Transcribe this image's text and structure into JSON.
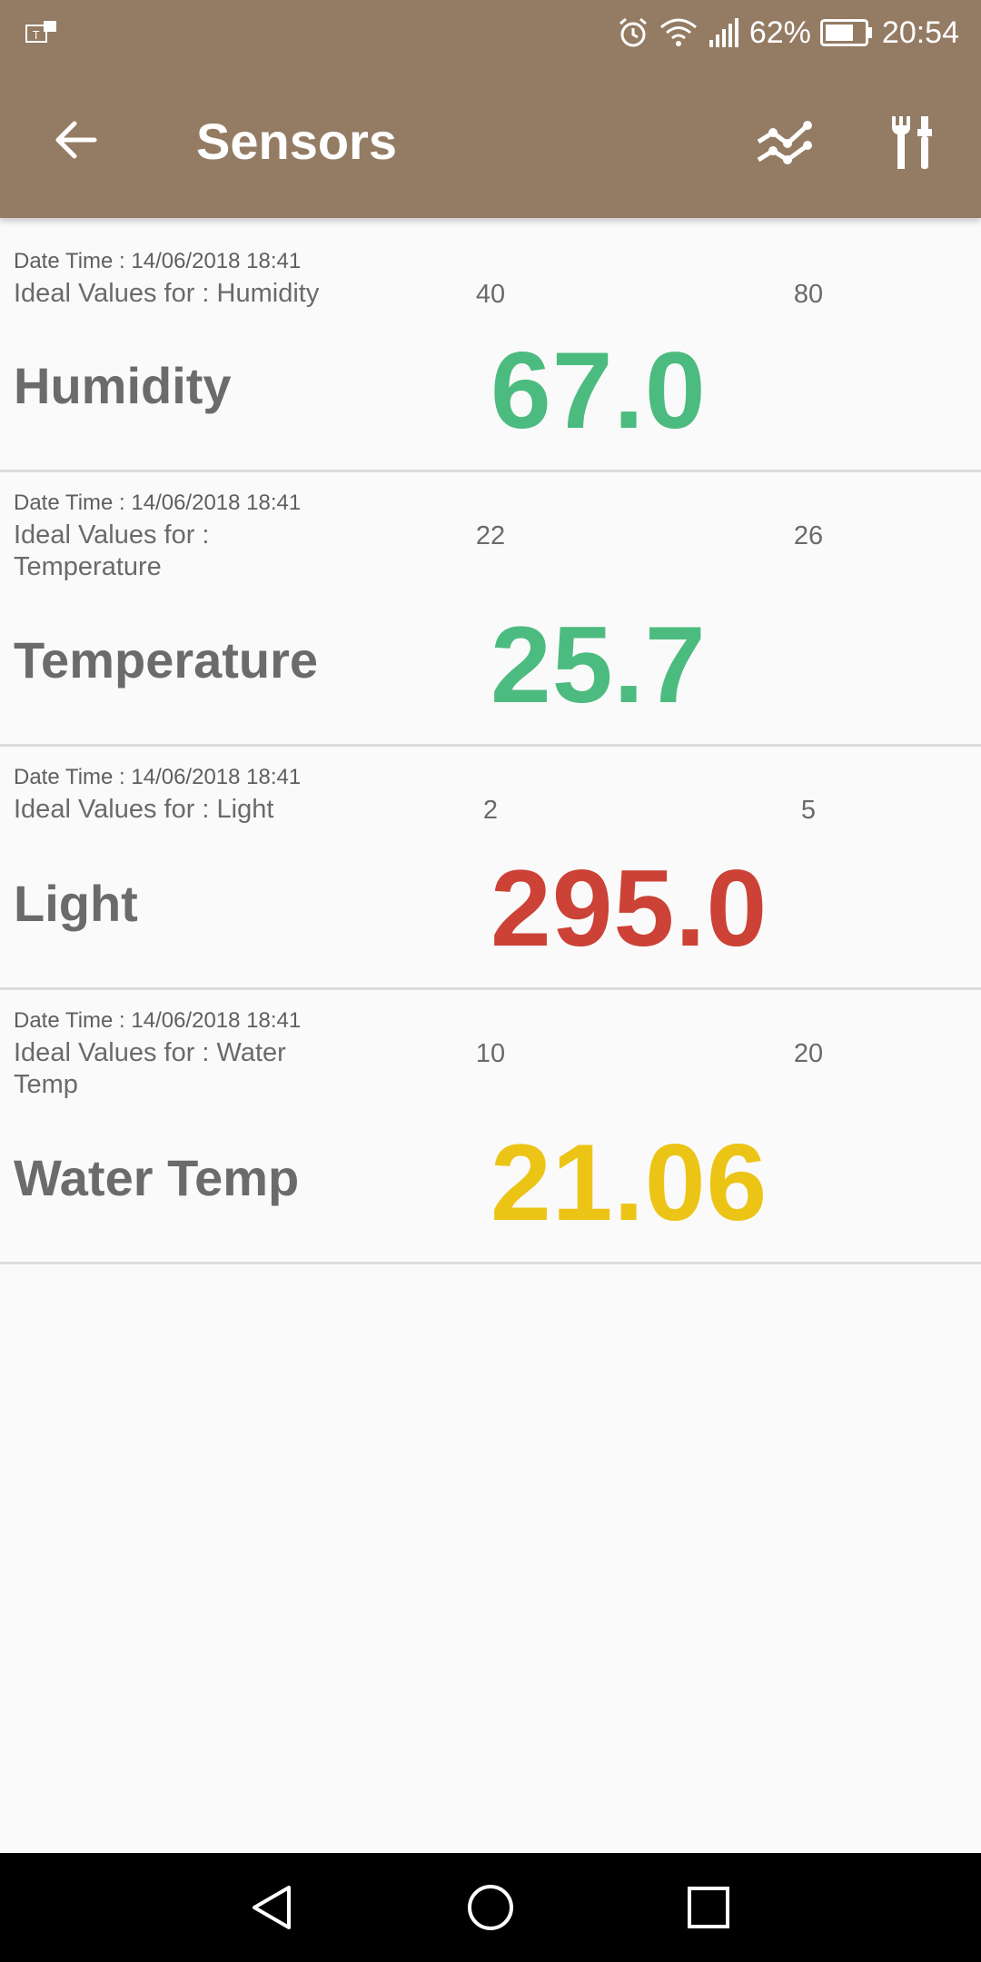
{
  "status_bar": {
    "battery": "62%",
    "time": "20:54",
    "icons": [
      "notification-icon",
      "alarm-icon",
      "wifi-icon",
      "signal-icon",
      "battery-icon"
    ]
  },
  "toolbar": {
    "title": "Sensors",
    "back_icon": "arrow-left-icon",
    "chart_icon": "line-chart-icon",
    "settings_icon": "tools-icon",
    "background_color": "#947b63"
  },
  "sensors": [
    {
      "datetime": "Date Time : 14/06/2018 18:41",
      "ideal_label": "Ideal Values for : Humidity",
      "min": "40",
      "max": "80",
      "name": "Humidity",
      "value": "67.0",
      "color": "#4cbb7f"
    },
    {
      "datetime": "Date Time : 14/06/2018 18:41",
      "ideal_label": "Ideal Values for : Temperature",
      "min": "22",
      "max": "26",
      "name": "Temperature",
      "value": "25.7",
      "color": "#4cbb7f"
    },
    {
      "datetime": "Date Time : 14/06/2018 18:41",
      "ideal_label": "Ideal Values for : Light",
      "min": "2",
      "max": "5",
      "name": "Light",
      "value": "295.0",
      "color": "#cc4236"
    },
    {
      "datetime": "Date Time : 14/06/2018 18:41",
      "ideal_label": "Ideal Values for : Water Temp",
      "min": "10",
      "max": "20",
      "name": "Water Temp",
      "value": "21.06",
      "color": "#ecc416"
    }
  ],
  "navbar": {
    "icons": [
      "back-triangle-icon",
      "home-circle-icon",
      "recents-square-icon"
    ]
  }
}
